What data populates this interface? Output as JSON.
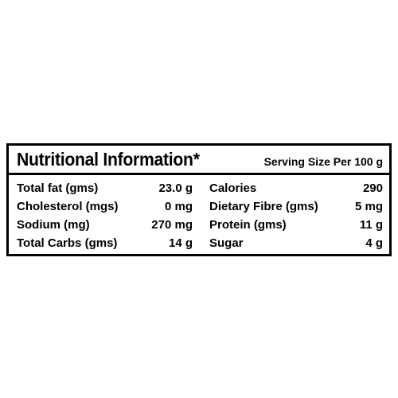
{
  "header": {
    "title": "Nutritional Information*",
    "serving": "Serving Size Per 100 g"
  },
  "table": {
    "rows": [
      [
        "Total fat (gms)",
        "23.0 g",
        "Calories",
        "290"
      ],
      [
        "Cholesterol (mgs)",
        "0 mg",
        "Dietary Fibre (gms)",
        "5 mg"
      ],
      [
        "Sodium (mg)",
        "270 mg",
        "Protein (gms)",
        "11 g"
      ],
      [
        "Total Carbs (gms)",
        "14 g",
        "Sugar",
        "4 g"
      ]
    ]
  }
}
